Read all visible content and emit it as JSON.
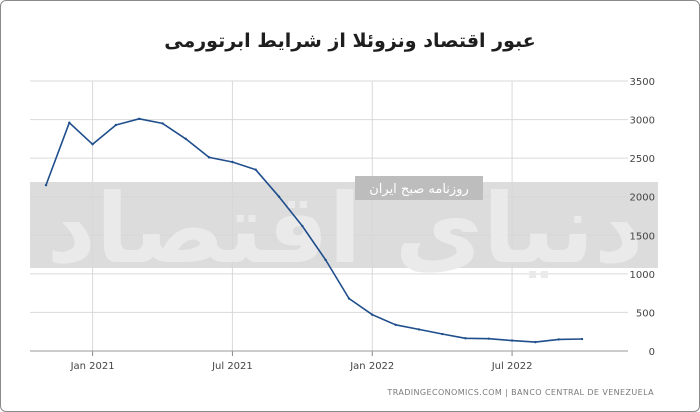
{
  "title": "عبور اقتصاد ونزوئلا از شرایط ابرتورمی",
  "source": "TRADINGECONOMICS.COM | BANCO CENTRAL DE VENEZUELA",
  "watermark": {
    "brand": "دنیای اقتصاد",
    "tagline": "روزنامه صبح ایران"
  },
  "colors": {
    "line": "#1f4e8c",
    "grid": "#d9d9d9",
    "band": "#d6d6d6"
  },
  "chart_data": {
    "type": "line",
    "x": [
      "2020-11",
      "2020-12",
      "2021-01",
      "2021-02",
      "2021-03",
      "2021-04",
      "2021-05",
      "2021-06",
      "2021-07",
      "2021-08",
      "2021-09",
      "2021-10",
      "2021-11",
      "2021-12",
      "2022-01",
      "2022-02",
      "2022-03",
      "2022-04",
      "2022-05",
      "2022-06",
      "2022-07",
      "2022-08",
      "2022-09",
      "2022-10"
    ],
    "series": [
      {
        "values": [
          2150,
          2960,
          2680,
          2930,
          3010,
          2950,
          2750,
          2510,
          2450,
          2350,
          2000,
          1620,
          1180,
          680,
          470,
          340,
          280,
          220,
          165,
          160,
          135,
          115,
          150,
          155
        ]
      }
    ],
    "xticks": [
      "Jan 2021",
      "Jul 2021",
      "Jan 2022",
      "Jul 2022"
    ],
    "yticks": [
      0,
      500,
      1000,
      1500,
      2000,
      2500,
      3000,
      3500
    ],
    "ylim": [
      0,
      3500
    ],
    "grid": true
  }
}
